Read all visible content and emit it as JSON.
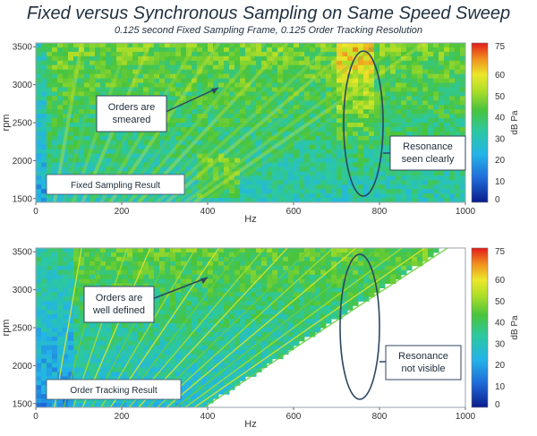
{
  "page": {
    "title": "Fixed versus Synchronous Sampling on Same Speed Sweep",
    "subtitle": "0.125 second Fixed Sampling Frame, 0.125 Order Tracking Resolution"
  },
  "chart_data": [
    {
      "type": "heatmap",
      "xlabel": "Hz",
      "ylabel": "rpm",
      "xlim": [
        0,
        1000
      ],
      "ylim": [
        1450,
        3550
      ],
      "xticks": [
        "0",
        "200",
        "400",
        "600",
        "800",
        "1000"
      ],
      "yticks": [
        "1500",
        "2000",
        "2500",
        "3000",
        "3500"
      ],
      "colorbar": {
        "label": "dB Pa",
        "range": [
          0,
          75
        ],
        "ticks": [
          "0",
          "10",
          "20",
          "30",
          "40",
          "50",
          "60",
          "75"
        ]
      },
      "mode": "fixed",
      "annotations": {
        "result_label": "Fixed Sampling Result",
        "orders": "Orders are smeared",
        "resonance": "Resonance seen clearly"
      }
    },
    {
      "type": "heatmap",
      "xlabel": "Hz",
      "ylabel": "rpm",
      "xlim": [
        0,
        1000
      ],
      "ylim": [
        1450,
        3550
      ],
      "xticks": [
        "0",
        "200",
        "400",
        "600",
        "800",
        "1000"
      ],
      "yticks": [
        "1500",
        "2000",
        "2500",
        "3000",
        "3500"
      ],
      "colorbar": {
        "label": "dB Pa",
        "range": [
          0,
          75
        ],
        "ticks": [
          "0",
          "10",
          "20",
          "30",
          "40",
          "50",
          "60",
          "75"
        ]
      },
      "mode": "tracked",
      "annotations": {
        "result_label": "Order Tracking Result",
        "orders": "Orders are well defined",
        "resonance": "Resonance not visible"
      }
    }
  ]
}
